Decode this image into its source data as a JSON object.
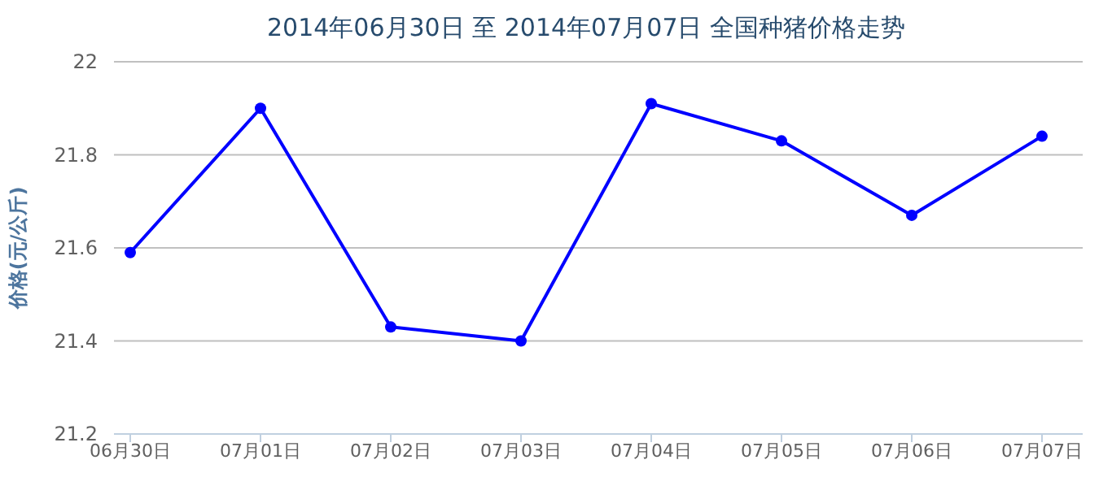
{
  "chart_data": {
    "type": "line",
    "title": "2014年06月30日 至 2014年07月07日 全国种猪价格走势",
    "ylabel": "价格(元/公斤)",
    "categories": [
      "06月30日",
      "07月01日",
      "07月02日",
      "07月03日",
      "07月04日",
      "07月05日",
      "07月06日",
      "07月07日"
    ],
    "series": [
      {
        "color": "#0000ff",
        "values": [
          21.59,
          21.9,
          21.43,
          21.4,
          21.91,
          21.83,
          21.67,
          21.84
        ]
      }
    ],
    "ylim": [
      21.2,
      22
    ],
    "yticks": [
      21.2,
      21.4,
      21.6,
      21.8,
      22
    ],
    "grid": "y",
    "marker": "circle",
    "line_style": "solid"
  }
}
